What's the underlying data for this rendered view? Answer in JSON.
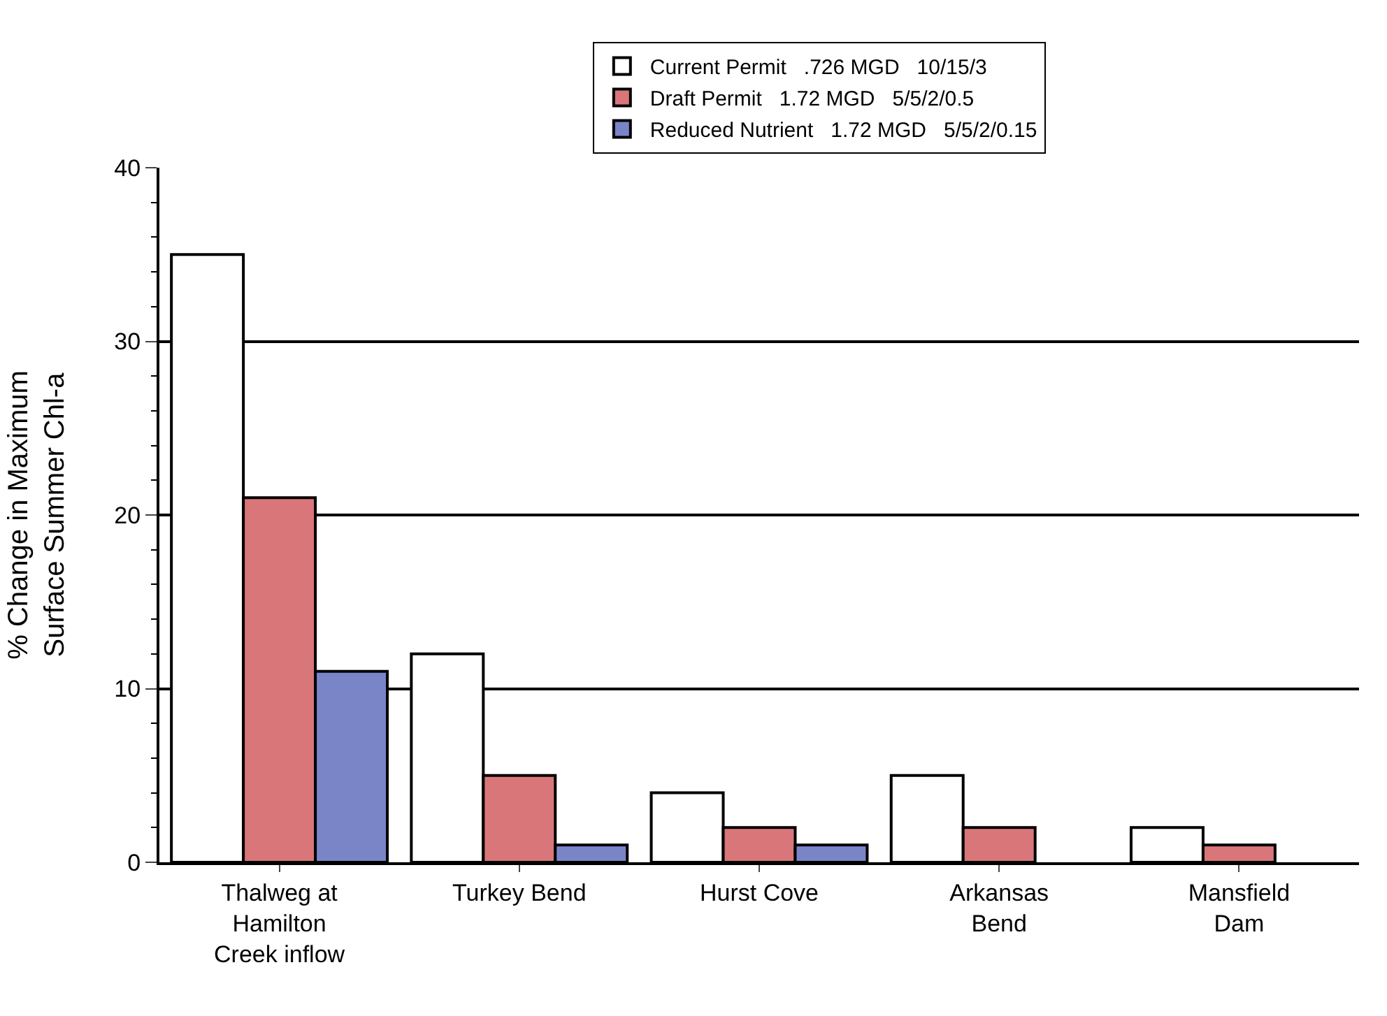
{
  "chart_data": {
    "type": "bar",
    "ylabel": "% Change in Maximum\nSurface Summer Chl-a",
    "categories": [
      "Thalweg at\nHamilton\nCreek inflow",
      "Turkey Bend",
      "Hurst Cove",
      "Arkansas\nBend",
      "Mansfield\nDam"
    ],
    "series": [
      {
        "name": "Current Permit   .726 MGD   10/15/3",
        "color": "#ffffff",
        "values": [
          35,
          12,
          4,
          5,
          2
        ]
      },
      {
        "name": "Draft Permit   1.72 MGD   5/5/2/0.5",
        "color": "#d9767a",
        "values": [
          21,
          5,
          2,
          2,
          1
        ]
      },
      {
        "name": "Reduced Nutrient   1.72 MGD   5/5/2/0.15",
        "color": "#7a85c8",
        "values": [
          11,
          1,
          1,
          null,
          null
        ]
      }
    ],
    "ylim": [
      0,
      40
    ],
    "yticks": [
      0,
      10,
      20,
      30,
      40
    ],
    "grid": "y",
    "legend": "top"
  }
}
